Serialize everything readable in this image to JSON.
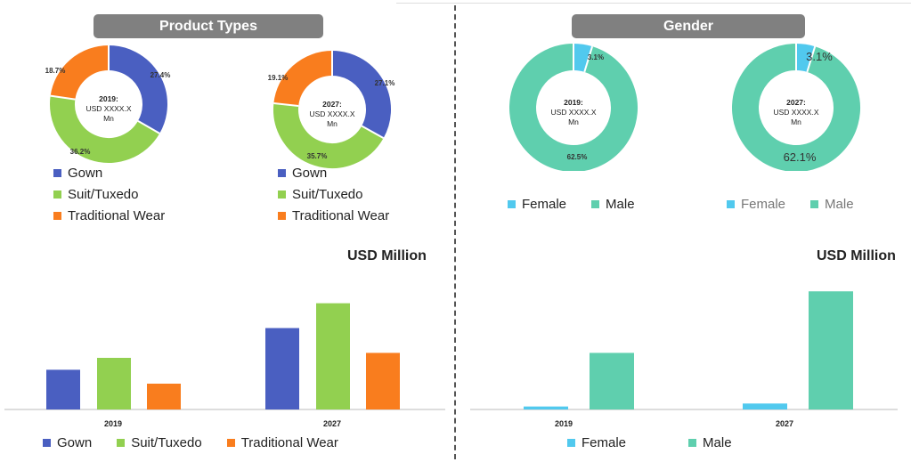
{
  "left": {
    "title": "Product Types",
    "donut_2019": {
      "year_label": "2019:",
      "value_label": "USD XXXX.X",
      "unit_label": "Mn"
    },
    "donut_2027": {
      "year_label": "2027:",
      "value_label": "USD XXXX.X",
      "unit_label": "Mn"
    },
    "legend": [
      "Gown",
      "Suit/Tuxedo",
      "Traditional Wear"
    ],
    "bar_unit": "USD Million"
  },
  "right": {
    "title": "Gender",
    "donut_2019": {
      "year_label": "2019:",
      "value_label": "USD XXXX.X",
      "unit_label": "Mn"
    },
    "donut_2027": {
      "year_label": "2027:",
      "value_label": "USD XXXX.X",
      "unit_label": "Mn"
    },
    "legend": [
      "Female",
      "Male"
    ],
    "bar_unit": "USD Million"
  },
  "colors": {
    "gown": "#4a5fc1",
    "suit": "#92d050",
    "traditional": "#f97d1e",
    "female": "#51c9ee",
    "male": "#5fcfae"
  },
  "chart_data": [
    {
      "type": "pie",
      "id": "product-2019",
      "title": "Product Types 2019",
      "slices": [
        {
          "label": "Gown",
          "value": 27.4,
          "text": "27.4%"
        },
        {
          "label": "Suit/Tuxedo",
          "value": 36.2,
          "text": "36.2%"
        },
        {
          "label": "Traditional Wear",
          "value": 18.7,
          "text": "18.7%"
        }
      ]
    },
    {
      "type": "pie",
      "id": "product-2027",
      "title": "Product Types 2027",
      "slices": [
        {
          "label": "Gown",
          "value": 27.1,
          "text": "27.1%"
        },
        {
          "label": "Suit/Tuxedo",
          "value": 35.7,
          "text": "35.7%"
        },
        {
          "label": "Traditional Wear",
          "value": 19.1,
          "text": "19.1%"
        }
      ]
    },
    {
      "type": "pie",
      "id": "gender-2019",
      "title": "Gender 2019",
      "slices": [
        {
          "label": "Female",
          "value": 3.1,
          "text": "3.1%"
        },
        {
          "label": "Male",
          "value": 62.5,
          "text": "62.5%"
        }
      ]
    },
    {
      "type": "pie",
      "id": "gender-2027",
      "title": "Gender 2027",
      "slices": [
        {
          "label": "Female",
          "value": 3.1,
          "text": "3.1%"
        },
        {
          "label": "Male",
          "value": 62.1,
          "text": "62.1%"
        }
      ]
    },
    {
      "type": "bar",
      "id": "product-bars",
      "ylabel": "USD Million",
      "categories": [
        "2019",
        "2027"
      ],
      "series": [
        {
          "name": "Gown",
          "values": [
            40,
            82
          ]
        },
        {
          "name": "Suit/Tuxedo",
          "values": [
            52,
            107
          ]
        },
        {
          "name": "Traditional Wear",
          "values": [
            26,
            57
          ]
        }
      ],
      "ylim": [
        0,
        130
      ],
      "grid": false,
      "legend": "bottom"
    },
    {
      "type": "bar",
      "id": "gender-bars",
      "ylabel": "USD Million",
      "categories": [
        "2019",
        "2027"
      ],
      "series": [
        {
          "name": "Female",
          "values": [
            3,
            6
          ]
        },
        {
          "name": "Male",
          "values": [
            57,
            119
          ]
        }
      ],
      "ylim": [
        0,
        130
      ],
      "grid": false,
      "legend": "bottom"
    }
  ]
}
